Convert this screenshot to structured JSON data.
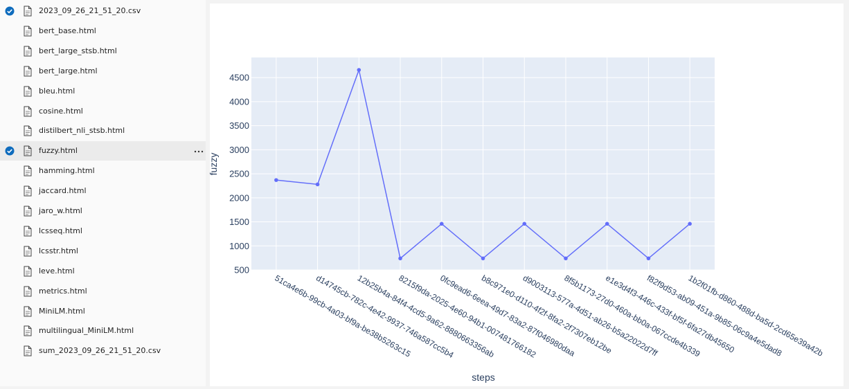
{
  "sidebar": {
    "files": [
      {
        "name": "2023_09_26_21_51_20.csv",
        "checked": true
      },
      {
        "name": "bert_base.html"
      },
      {
        "name": "bert_large_stsb.html"
      },
      {
        "name": "bert_large.html"
      },
      {
        "name": "bleu.html"
      },
      {
        "name": "cosine.html"
      },
      {
        "name": "distilbert_nli_stsb.html"
      },
      {
        "name": "fuzzy.html",
        "checked": true,
        "active": true
      },
      {
        "name": "hamming.html"
      },
      {
        "name": "jaccard.html"
      },
      {
        "name": "jaro_w.html"
      },
      {
        "name": "lcsseq.html"
      },
      {
        "name": "lcsstr.html"
      },
      {
        "name": "leve.html"
      },
      {
        "name": "metrics.html"
      },
      {
        "name": "MiniLM.html"
      },
      {
        "name": "multilingual_MiniLM.html"
      },
      {
        "name": "sum_2023_09_26_21_51_20.csv"
      }
    ]
  },
  "chart_data": {
    "type": "line",
    "x_label": "steps",
    "y_label": "fuzzy",
    "categories": [
      "51ca4e6b-99cb-4a03-bf9a-be38b5263c15",
      "d14745cb-782c-4e42-9937-746a587cc5b4",
      "12b25b4a-84f4-4cd5-9a62-8880663356ab",
      "8215f9da-2025-4e60-94b1-007481766182",
      "0fc9ead6-6eea-49d7-83a2-87f046980daa",
      "b8c971e0-d110-4f2f-8fa2-2f7307eb12be",
      "d9003113-577a-4d51-ab26-b5a22022d7ff",
      "8f5b1173-27d0-460a-bb0a-067ccde4b339",
      "e1e3d4f3-446c-433f-bf5f-6fa27db45650",
      "f82f9d53-ab09-451a-9b85-06c9a4e5dad8",
      "1b2f01fb-d860-488d-ba5d-2cd65e39a42b"
    ],
    "values": [
      2370,
      2280,
      4660,
      740,
      1460,
      740,
      1460,
      740,
      1460,
      740,
      1460
    ],
    "color": "#636efa",
    "ylim": [
      500,
      4920
    ],
    "yticks": [
      500,
      1000,
      1500,
      2000,
      2500,
      3000,
      3500,
      4000,
      4500
    ],
    "grid": true
  }
}
